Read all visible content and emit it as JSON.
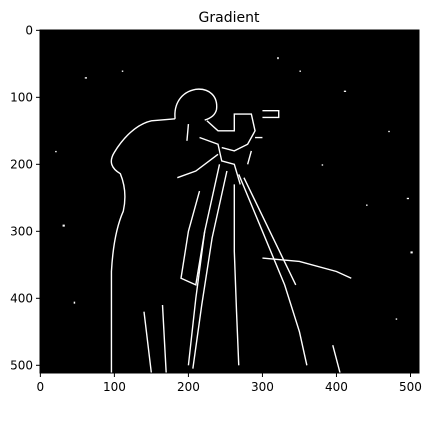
{
  "chart_data": {
    "type": "image",
    "title": "Gradient",
    "xlim": [
      -0.5,
      511.5
    ],
    "ylim": [
      511.5,
      -0.5
    ],
    "xticks": [
      0,
      100,
      200,
      300,
      400,
      500
    ],
    "yticks": [
      0,
      100,
      200,
      300,
      400,
      500
    ]
  }
}
